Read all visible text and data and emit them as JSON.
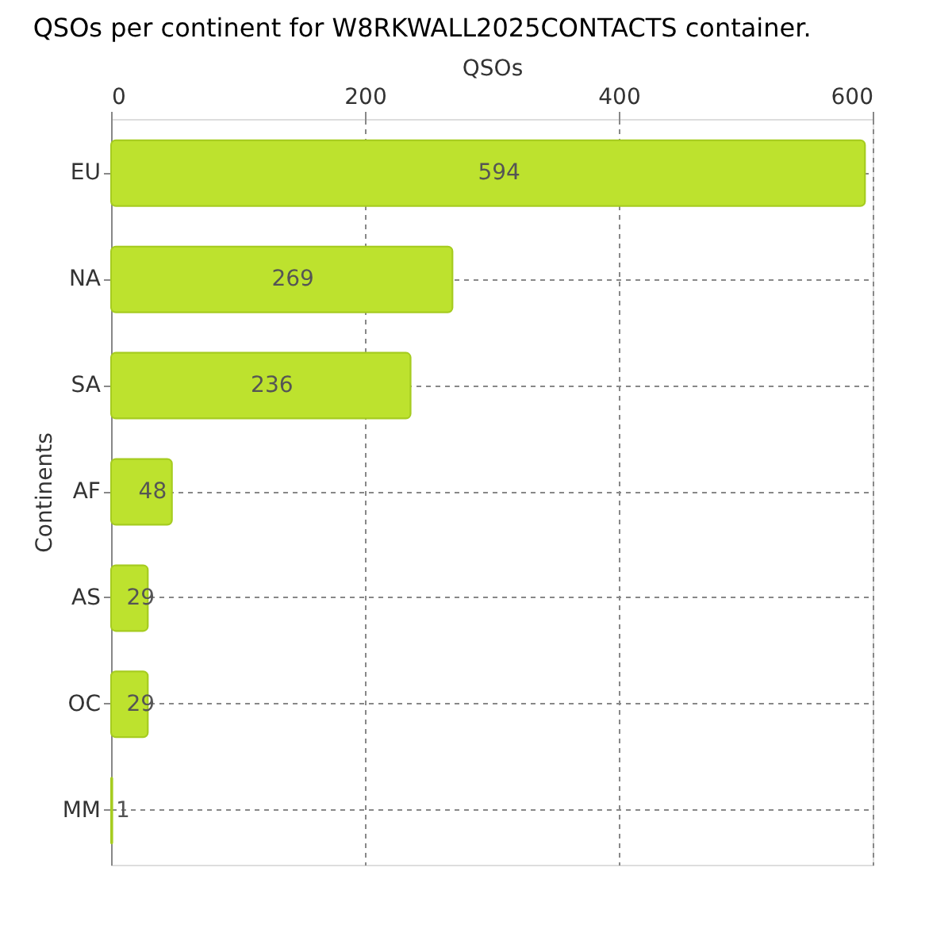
{
  "chart_data": {
    "type": "bar",
    "orientation": "horizontal",
    "title": "QSOs per continent for W8RKWALL2025CONTACTS container.",
    "xlabel": "QSOs",
    "ylabel": "Continents",
    "categories": [
      "EU",
      "NA",
      "SA",
      "AF",
      "AS",
      "OC",
      "MM"
    ],
    "values": [
      594,
      269,
      236,
      48,
      29,
      29,
      1
    ],
    "color": "#bde22e",
    "xlim": [
      0,
      600
    ],
    "xticks": [
      0,
      200,
      400,
      600
    ],
    "grid": true,
    "data_labels": true
  }
}
